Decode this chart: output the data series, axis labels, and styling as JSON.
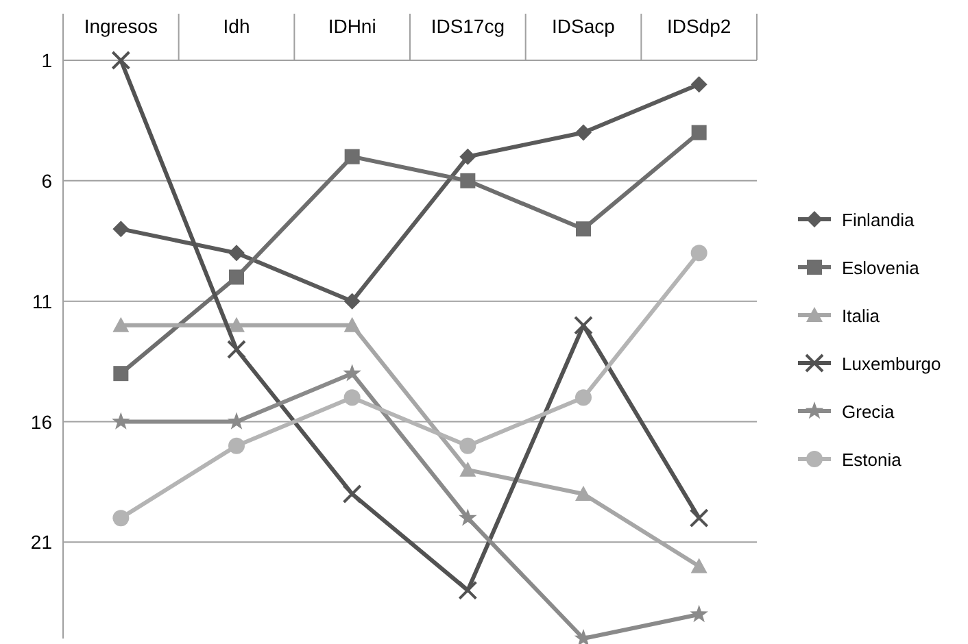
{
  "chart_data": {
    "type": "line",
    "categories": [
      "Ingresos",
      "Idh",
      "IDHni",
      "IDS17cg",
      "IDSacp",
      "IDSdp2"
    ],
    "ylim": [
      25,
      1
    ],
    "yticks": [
      1,
      6,
      11,
      16,
      21
    ],
    "grid": "y",
    "legend": "right",
    "series": [
      {
        "name": "Finlandia",
        "color": "#5a5a5a",
        "marker": "diamond",
        "values": [
          8,
          9,
          11,
          5,
          4,
          2
        ]
      },
      {
        "name": "Eslovenia",
        "color": "#6e6e6e",
        "marker": "square",
        "values": [
          14,
          10,
          5,
          6,
          8,
          4
        ]
      },
      {
        "name": "Italia",
        "color": "#a6a6a6",
        "marker": "triangle",
        "values": [
          12,
          12,
          12,
          18,
          19,
          22
        ]
      },
      {
        "name": "Luxemburgo",
        "color": "#525252",
        "marker": "cross",
        "values": [
          1,
          13,
          19,
          23,
          12,
          20
        ]
      },
      {
        "name": "Grecia",
        "color": "#8a8a8a",
        "marker": "star",
        "values": [
          16,
          16,
          14,
          20,
          25,
          24
        ]
      },
      {
        "name": "Estonia",
        "color": "#b4b4b4",
        "marker": "circle",
        "values": [
          20,
          17,
          15,
          17,
          15,
          9
        ]
      }
    ]
  }
}
